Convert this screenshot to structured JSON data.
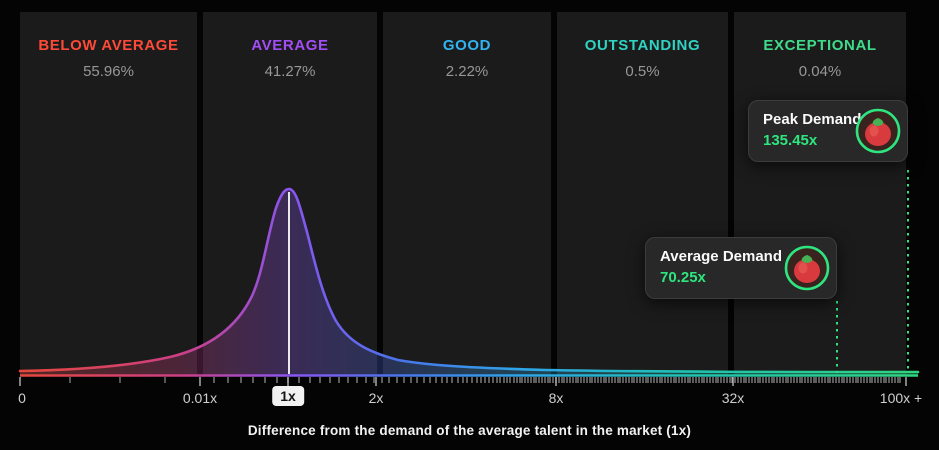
{
  "accent_green": "#2ee57f",
  "bands": [
    {
      "label": "BELOW AVERAGE",
      "pct": "55.96%",
      "color": "#ff4a38"
    },
    {
      "label": "AVERAGE",
      "pct": "41.27%",
      "color": "#a34df7"
    },
    {
      "label": "GOOD",
      "pct": "2.22%",
      "color": "#31b4f2"
    },
    {
      "label": "OUTSTANDING",
      "pct": "0.5%",
      "color": "#2ed3c2"
    },
    {
      "label": "EXCEPTIONAL",
      "pct": "0.04%",
      "color": "#3edc8a"
    }
  ],
  "axis": {
    "ticks": [
      "0",
      "0.01x",
      "1x",
      "2x",
      "8x",
      "32x",
      "100x +"
    ],
    "label": "Difference from the demand of the average talent in the market (1x)"
  },
  "tooltips": {
    "peak": {
      "title": "Peak Demand",
      "value": "135.45x"
    },
    "average": {
      "title": "Average Demand",
      "value": "70.25x"
    }
  },
  "chart_data": {
    "type": "area",
    "xlabel": "Difference from the demand of the average talent in the market (1x)",
    "x_scale": "logarithmic-like",
    "x_ticks": [
      "0",
      "0.01x",
      "1x",
      "2x",
      "8x",
      "32x",
      "100x +"
    ],
    "grid": false,
    "legend": false,
    "bands": [
      {
        "label": "BELOW AVERAGE",
        "share_pct": 55.96,
        "x_range": "0 - 0.01x"
      },
      {
        "label": "AVERAGE",
        "share_pct": 41.27,
        "x_range": "0.01x - 2x"
      },
      {
        "label": "GOOD",
        "share_pct": 2.22,
        "x_range": "2x - 8x"
      },
      {
        "label": "OUTSTANDING",
        "share_pct": 0.5,
        "x_range": "8x - 32x"
      },
      {
        "label": "EXCEPTIONAL",
        "share_pct": 0.04,
        "x_range": "32x - 100x +"
      }
    ],
    "curve": {
      "shape": "right-skewed bell density peaking at 1x with long right tail",
      "peak_x": "1x",
      "samples_x": [
        "0",
        "0.01x",
        "0.5x",
        "1x",
        "2x",
        "8x",
        "32x",
        "100x"
      ],
      "samples_relative_density": [
        0.01,
        0.15,
        0.75,
        1.0,
        0.16,
        0.03,
        0.015,
        0.01
      ]
    },
    "markers": [
      {
        "label": "Peak Demand",
        "value": "135.45x"
      },
      {
        "label": "Average Demand",
        "value": "70.25x"
      }
    ]
  }
}
